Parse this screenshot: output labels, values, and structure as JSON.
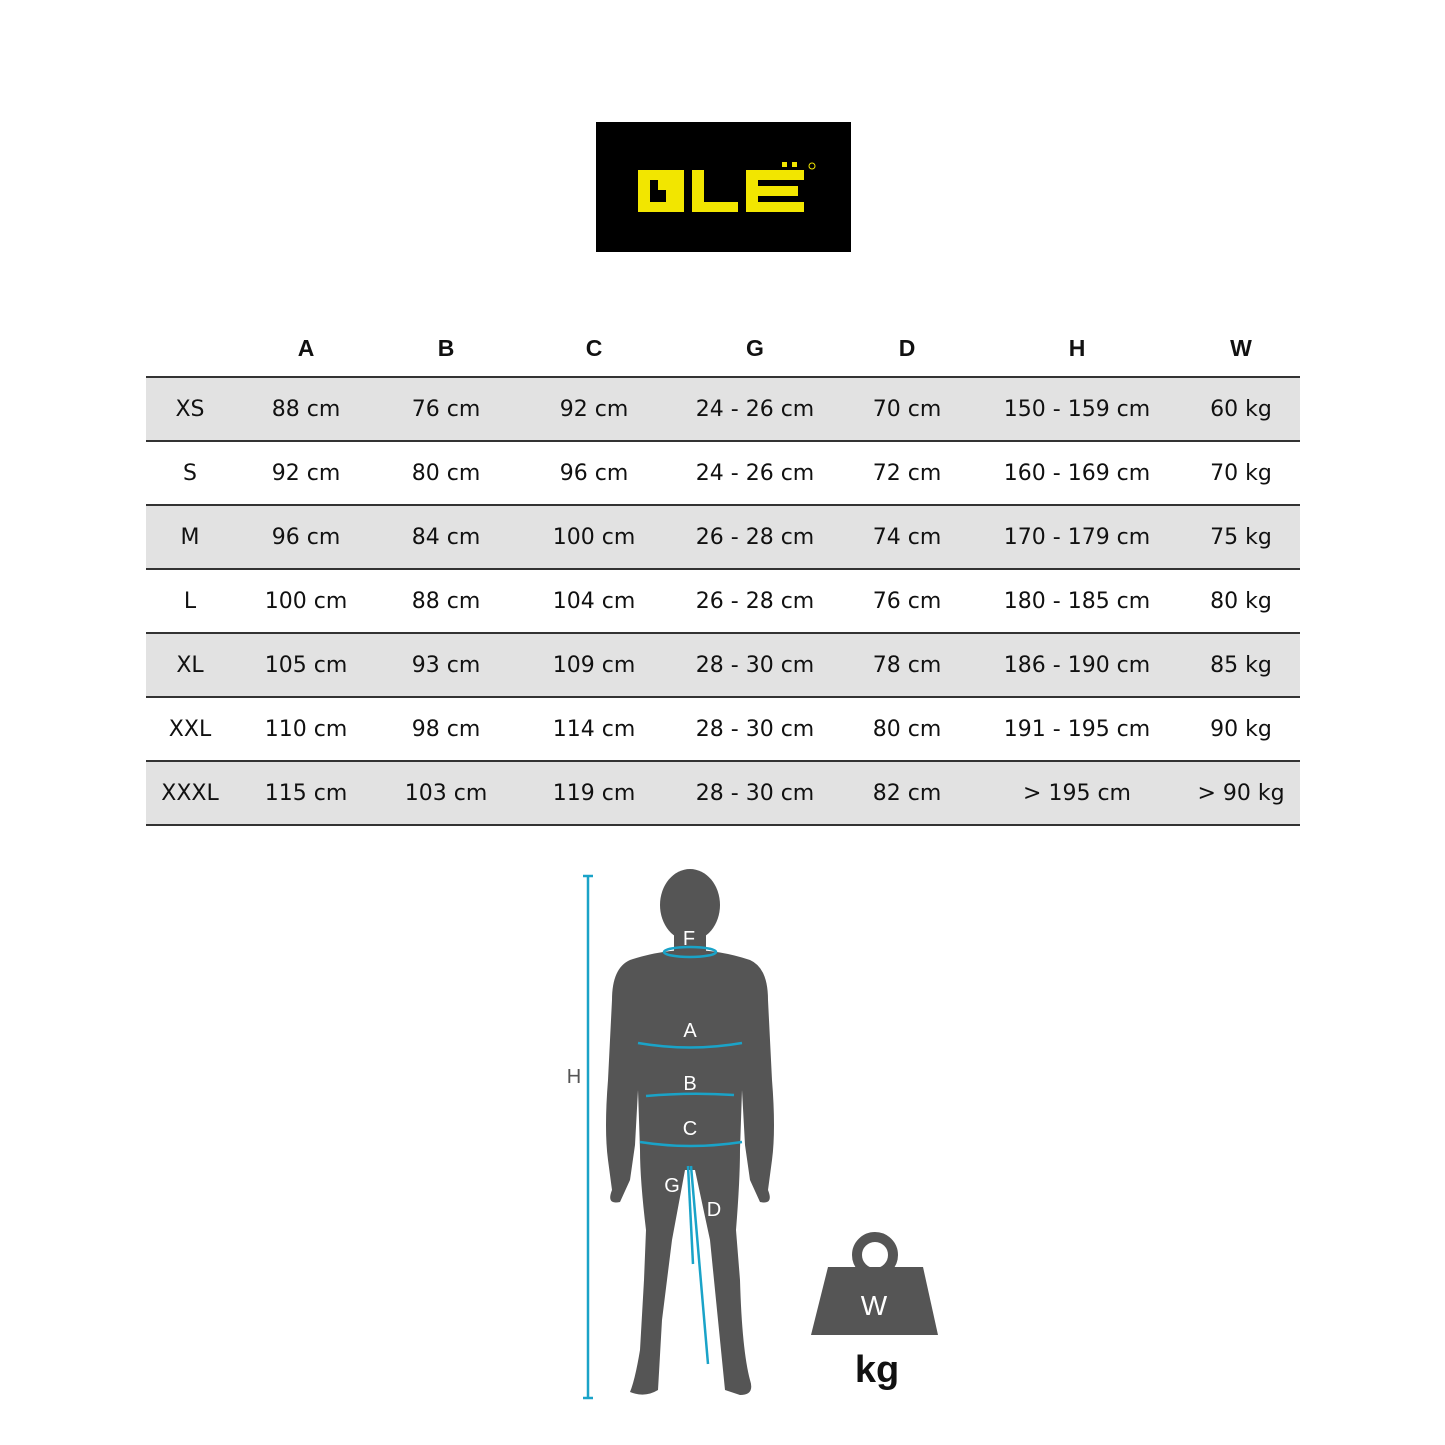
{
  "logo": {
    "text": "ALE",
    "background": "#000000",
    "color": "#f2e600"
  },
  "table": {
    "headers": [
      "",
      "A",
      "B",
      "C",
      "G",
      "D",
      "H",
      "W"
    ],
    "rows": [
      [
        "XS",
        "88 cm",
        "76 cm",
        "92 cm",
        "24 - 26 cm",
        "70 cm",
        "150 - 159 cm",
        "60 kg"
      ],
      [
        "S",
        "92 cm",
        "80 cm",
        "96 cm",
        "24 - 26 cm",
        "72 cm",
        "160 - 169 cm",
        "70 kg"
      ],
      [
        "M",
        "96 cm",
        "84 cm",
        "100 cm",
        "26 - 28 cm",
        "74 cm",
        "170 - 179 cm",
        "75 kg"
      ],
      [
        "L",
        "100 cm",
        "88 cm",
        "104 cm",
        "26 - 28 cm",
        "76 cm",
        "180 - 185 cm",
        "80 kg"
      ],
      [
        "XL",
        "105 cm",
        "93 cm",
        "109 cm",
        "28 - 30 cm",
        "78 cm",
        "186 - 190 cm",
        "85 kg"
      ],
      [
        "XXL",
        "110 cm",
        "98 cm",
        "114 cm",
        "28 - 30 cm",
        "80 cm",
        "191 - 195 cm",
        "90 kg"
      ],
      [
        "XXXL",
        "115 cm",
        "103 cm",
        "119 cm",
        "28 - 30 cm",
        "82 cm",
        ">  195 cm",
        "> 90 kg"
      ]
    ]
  },
  "figure": {
    "labels": {
      "F": "F",
      "A": "A",
      "B": "B",
      "C": "C",
      "G": "G",
      "D": "D",
      "H": "H"
    },
    "weight_label": "W",
    "weight_unit": "kg",
    "accent": "#1aa3c8",
    "silhouette": "#555555"
  }
}
